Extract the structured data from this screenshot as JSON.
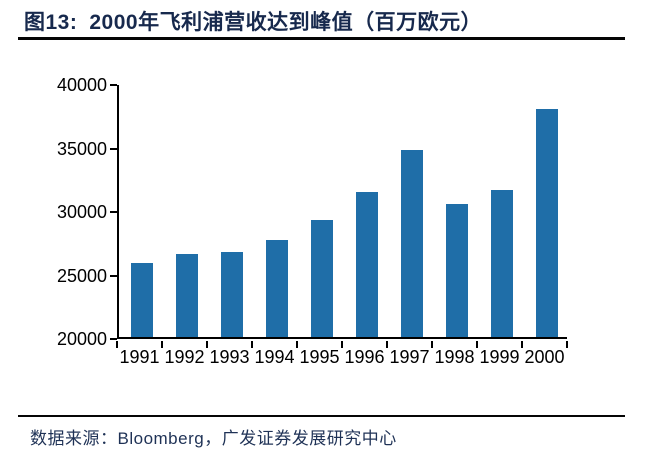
{
  "header": {
    "figure_label": "图13:",
    "title": "2000年飞利浦营收达到峰值（百万欧元）"
  },
  "chart_data": {
    "type": "bar",
    "title": "2000年飞利浦营收达到峰值（百万欧元）",
    "categories": [
      "1991",
      "1992",
      "1993",
      "1994",
      "1995",
      "1996",
      "1997",
      "1998",
      "1999",
      "2000"
    ],
    "values": [
      25850,
      26550,
      26700,
      27650,
      29250,
      31450,
      34750,
      30500,
      31550,
      37950
    ],
    "xlabel": "",
    "ylabel": "",
    "ylim": [
      20000,
      40000
    ],
    "yticks": [
      40000,
      35000,
      30000,
      25000,
      20000
    ],
    "grid": false,
    "legend": false,
    "bar_color": "#1F6EA8",
    "axis_color": "#000000"
  },
  "footer": {
    "source": "数据来源：Bloomberg，广发证券发展研究中心"
  },
  "colors": {
    "title_navy": "#17294D",
    "footer_navy": "#1F3256",
    "rule_black": "#050505"
  }
}
